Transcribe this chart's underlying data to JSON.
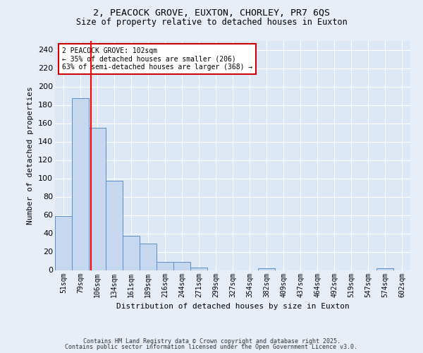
{
  "title1": "2, PEACOCK GROVE, EUXTON, CHORLEY, PR7 6QS",
  "title2": "Size of property relative to detached houses in Euxton",
  "xlabel": "Distribution of detached houses by size in Euxton",
  "ylabel": "Number of detached properties",
  "bin_labels": [
    "51sqm",
    "79sqm",
    "106sqm",
    "134sqm",
    "161sqm",
    "189sqm",
    "216sqm",
    "244sqm",
    "271sqm",
    "299sqm",
    "327sqm",
    "354sqm",
    "382sqm",
    "409sqm",
    "437sqm",
    "464sqm",
    "492sqm",
    "519sqm",
    "547sqm",
    "574sqm",
    "602sqm"
  ],
  "bar_heights": [
    59,
    187,
    155,
    97,
    37,
    29,
    9,
    9,
    3,
    0,
    0,
    0,
    2,
    0,
    0,
    0,
    0,
    0,
    0,
    2,
    0
  ],
  "bar_color": "#c5d8f0",
  "bar_edge_color": "#5b8ec4",
  "red_line_x": 1.62,
  "annotation_text": "2 PEACOCK GROVE: 102sqm\n← 35% of detached houses are smaller (206)\n63% of semi-detached houses are larger (368) →",
  "annotation_box_color": "#ffffff",
  "annotation_box_edge": "#cc0000",
  "ylim": [
    0,
    250
  ],
  "yticks": [
    0,
    20,
    40,
    60,
    80,
    100,
    120,
    140,
    160,
    180,
    200,
    220,
    240
  ],
  "footer1": "Contains HM Land Registry data © Crown copyright and database right 2025.",
  "footer2": "Contains public sector information licensed under the Open Government Licence v3.0.",
  "fig_bg_color": "#e8eef8",
  "plot_bg_color": "#dce8f5"
}
